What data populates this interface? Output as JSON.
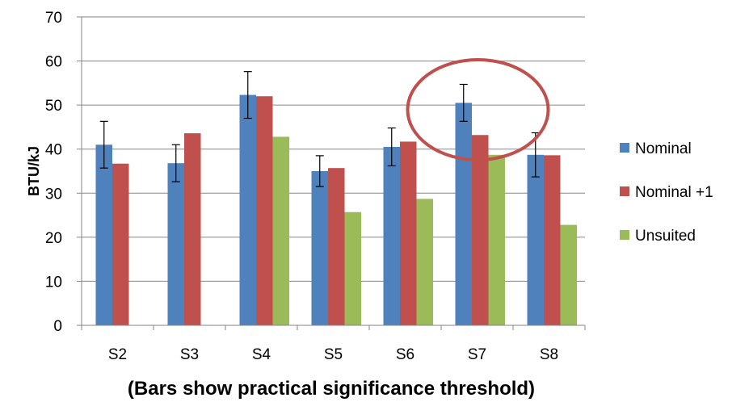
{
  "chart_data": {
    "type": "bar",
    "title": "",
    "xlabel": "(Bars show practical significance threshold)",
    "ylabel": "BTU/kJ",
    "ylim": [
      0,
      70
    ],
    "yticks": [
      0,
      10,
      20,
      30,
      40,
      50,
      60,
      70
    ],
    "categories": [
      "S2",
      "S3",
      "S4",
      "S5",
      "S6",
      "S7",
      "S8"
    ],
    "series": [
      {
        "name": "Nominal",
        "color": "#4F81BD",
        "values": [
          41,
          36.8,
          52.3,
          35,
          40.5,
          50.5,
          38.7
        ],
        "error": [
          5.3,
          4.2,
          5.3,
          3.5,
          4.3,
          4.2,
          5
        ]
      },
      {
        "name": "Nominal +1",
        "color": "#C0504D",
        "values": [
          36.7,
          43.6,
          52,
          35.7,
          41.7,
          43.2,
          38.6
        ]
      },
      {
        "name": "Unsuited",
        "color": "#9BBB59",
        "values": [
          null,
          null,
          42.8,
          25.7,
          28.7,
          38.7,
          22.8
        ]
      }
    ],
    "grid": true,
    "legend_position": "right",
    "annotation": {
      "shape": "ellipse",
      "category": "S7",
      "color": "#C0504D"
    }
  }
}
